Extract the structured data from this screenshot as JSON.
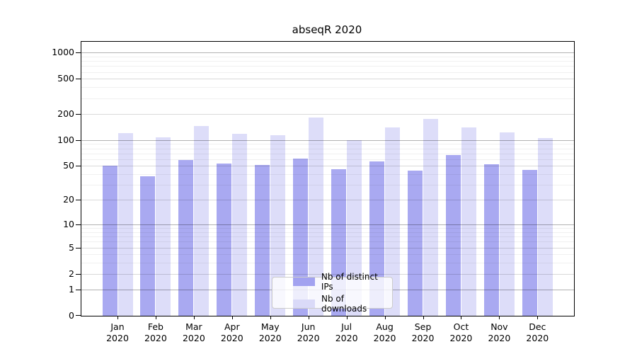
{
  "colors": {
    "bar_distinct_ips": "#a2a2f0",
    "bar_downloads": "#dadaf8",
    "grid_pow10": "rgba(0,0,0,0.30)",
    "grid_major": "rgba(0,0,0,0.15)",
    "grid_minor": "rgba(0,0,0,0.06)",
    "spine": "#000000",
    "text": "#000000",
    "legend_background": "rgba(255,255,255,0.8)",
    "legend_border": "#cccccc"
  },
  "chart_data": {
    "type": "bar",
    "title": "abseqR 2020",
    "categories": [
      "Jan 2020",
      "Feb 2020",
      "Mar 2020",
      "Apr 2020",
      "May 2020",
      "Jun 2020",
      "Jul 2020",
      "Aug 2020",
      "Sep 2020",
      "Oct 2020",
      "Nov 2020",
      "Dec 2020"
    ],
    "series": [
      {
        "name": "Nb of distinct IPs",
        "color": "#a2a2f0",
        "values": [
          50,
          38,
          59,
          53,
          51,
          61,
          46,
          57,
          44,
          67,
          52,
          45
        ]
      },
      {
        "name": "Nb of downloads",
        "color": "#dadaf8",
        "values": [
          119,
          107,
          145,
          117,
          113,
          180,
          100,
          140,
          175,
          140,
          122,
          105
        ]
      }
    ],
    "xlabel": "",
    "ylabel": "",
    "y_axis": {
      "scale": "log10(value+1)",
      "ticks": [
        0,
        1,
        2,
        5,
        10,
        20,
        50,
        100,
        200,
        500,
        1000
      ],
      "minor_gridlines": [
        3,
        4,
        6,
        7,
        8,
        9,
        30,
        40,
        60,
        70,
        80,
        90,
        300,
        400,
        600,
        700,
        800,
        900
      ],
      "range": [
        0,
        1330
      ]
    },
    "grid": true,
    "legend_position": "inside-bottom-center"
  }
}
